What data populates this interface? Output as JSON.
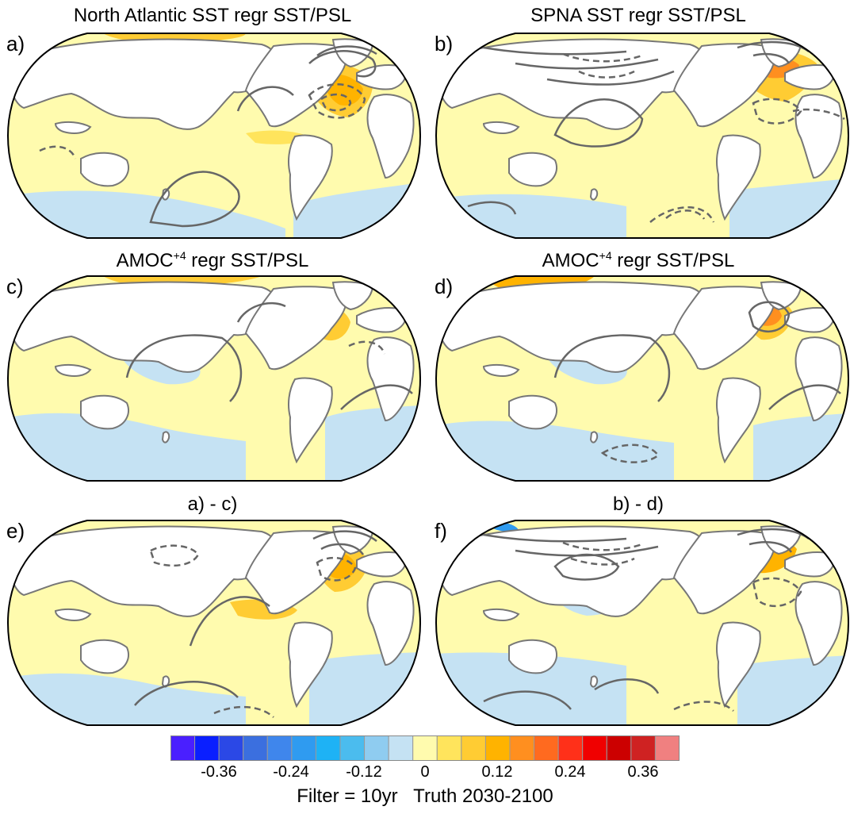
{
  "panels": [
    {
      "label": "a)",
      "title": "North Atlantic SST regr SST/PSL"
    },
    {
      "label": "b)",
      "title": "SPNA SST regr SST/PSL"
    },
    {
      "label": "c)",
      "title_main": "AMOC",
      "title_sup": "+4",
      "title_rest": " regr SST/PSL"
    },
    {
      "label": "d)",
      "title_main": "AMOC",
      "title_sup": "+4",
      "title_rest": " regr SST/PSL"
    },
    {
      "label": "e)",
      "title": "a) - c)"
    },
    {
      "label": "f)",
      "title": "b) - d)"
    }
  ],
  "colorbar": {
    "colors": [
      "#4a1fff",
      "#0a1fff",
      "#2b48e6",
      "#3b6fdf",
      "#3f86ec",
      "#2f9bf0",
      "#1eb2f5",
      "#4bbcee",
      "#8fccf0",
      "#c5e2f3",
      "#fffbae",
      "#ffe45c",
      "#ffcc33",
      "#ffb300",
      "#ff8f1f",
      "#ff6a1f",
      "#ff3019",
      "#f00000",
      "#cc0000",
      "#cf2222",
      "#f08080"
    ],
    "tick_labels": [
      "-0.36",
      "-0.24",
      "-0.12",
      "0",
      "0.12",
      "0.24",
      "0.36"
    ],
    "tick_values": [
      -0.36,
      -0.24,
      -0.12,
      0,
      0.12,
      0.24,
      0.36
    ]
  },
  "footer": "Filter = 10yr   Truth 2030-2100",
  "colors": {
    "ocean_base": "#fffbae",
    "land": "#ffffff",
    "coast": "#777777",
    "contour": "#666666",
    "cool": "#c5e2f3",
    "warm1": "#ffe45c",
    "warm2": "#ffcc33",
    "warm3": "#ffb300",
    "warm4": "#ff8f1f",
    "hot": "#f00000"
  }
}
